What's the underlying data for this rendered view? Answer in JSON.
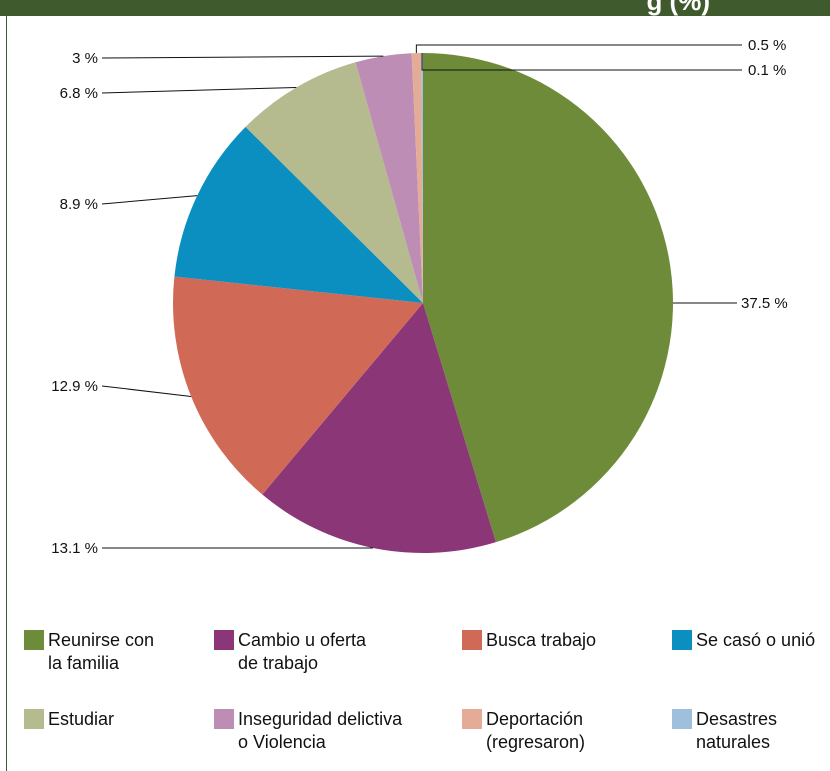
{
  "header": {
    "title": "g (%)"
  },
  "chart_data": {
    "type": "pie",
    "slices": [
      {
        "name": "Reunirse con\nla familia",
        "value": 37.5,
        "label": "37.5 %",
        "color": "#6e8b3a"
      },
      {
        "name": "Cambio u oferta\nde trabajo",
        "value": 13.1,
        "label": "13.1 %",
        "color": "#8b3777"
      },
      {
        "name": "Busca trabajo",
        "value": 12.9,
        "label": "12.9 %",
        "color": "#d06a57"
      },
      {
        "name": "Se casó o unió",
        "value": 8.9,
        "label": "8.9 %",
        "color": "#0b8ec0"
      },
      {
        "name": "Estudiar",
        "value": 6.8,
        "label": "6.8 %",
        "color": "#b5bb8f"
      },
      {
        "name": "Inseguridad delictiva\no Violencia",
        "value": 3.0,
        "label": "3 %",
        "color": "#bd8db5"
      },
      {
        "name": "Deportación\n(regresaron)",
        "value": 0.5,
        "label": "0.5 %",
        "color": "#e4ac97"
      },
      {
        "name": "Desastres\nnaturales",
        "value": 0.1,
        "label": "0.1 %",
        "color": "#9ec0dd"
      }
    ],
    "legend_position": "bottom"
  }
}
